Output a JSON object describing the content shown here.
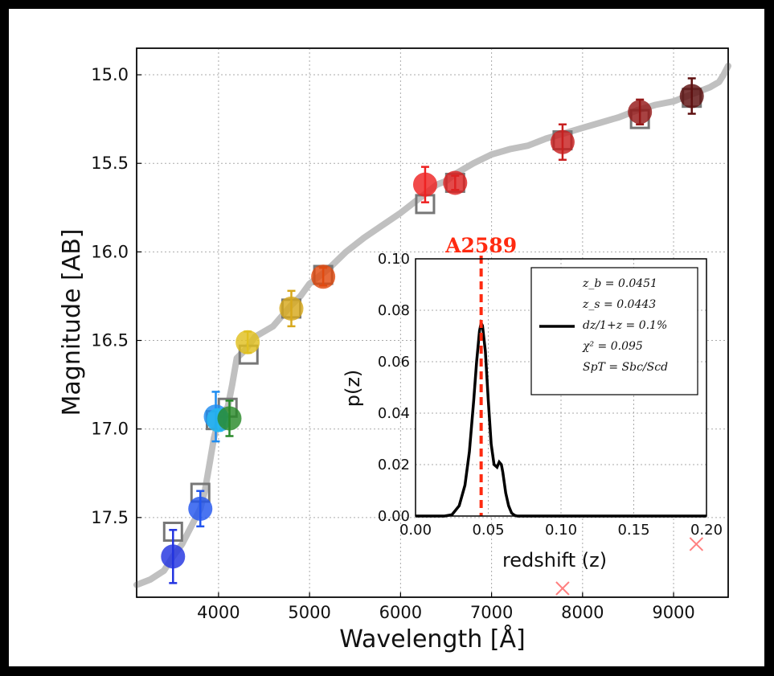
{
  "chart_data": [
    {
      "type": "scatter",
      "xlabel": "Wavelength [Å]",
      "ylabel": "Magnitude [AB]",
      "xlim": [
        3100,
        9600
      ],
      "ylim": [
        17.95,
        14.85
      ],
      "y_inverted": true,
      "grid": true,
      "xticks": [
        4000,
        5000,
        6000,
        7000,
        8000,
        9000
      ],
      "yticks": [
        15.0,
        15.5,
        16.0,
        16.5,
        17.0,
        17.5
      ],
      "template_sed": {
        "color": "#c0c0c0",
        "x": [
          3100,
          3250,
          3400,
          3500,
          3600,
          3700,
          3800,
          3850,
          3900,
          3950,
          4000,
          4050,
          4100,
          4150,
          4200,
          4300,
          4400,
          4600,
          4800,
          4900,
          5000,
          5100,
          5200,
          5300,
          5400,
          5600,
          5800,
          6000,
          6200,
          6300,
          6400,
          6500,
          6600,
          6800,
          7000,
          7200,
          7400,
          7600,
          7800,
          8000,
          8200,
          8400,
          8600,
          8800,
          9000,
          9200,
          9400,
          9500,
          9550,
          9600
        ],
        "y": [
          17.88,
          17.85,
          17.8,
          17.72,
          17.65,
          17.55,
          17.45,
          17.35,
          17.2,
          17.05,
          16.95,
          16.9,
          16.88,
          16.75,
          16.6,
          16.55,
          16.48,
          16.42,
          16.3,
          16.25,
          16.18,
          16.14,
          16.1,
          16.05,
          16.0,
          15.92,
          15.85,
          15.78,
          15.7,
          15.66,
          15.62,
          15.6,
          15.56,
          15.5,
          15.45,
          15.42,
          15.4,
          15.36,
          15.33,
          15.3,
          15.27,
          15.24,
          15.2,
          15.17,
          15.15,
          15.11,
          15.07,
          15.04,
          15.0,
          14.95
        ]
      },
      "observed": [
        {
          "x": 3500,
          "y": 17.72,
          "err": 0.15,
          "color": "#2233e0"
        },
        {
          "x": 3800,
          "y": 17.45,
          "err": 0.1,
          "color": "#2255ee"
        },
        {
          "x": 3970,
          "y": 16.93,
          "err": 0.14,
          "color": "#1e8cf0"
        },
        {
          "x": 4000,
          "y": 16.95,
          "err": 0.06,
          "color": "#25b5ee"
        },
        {
          "x": 4120,
          "y": 16.94,
          "err": 0.1,
          "color": "#2a8a2a"
        },
        {
          "x": 4320,
          "y": 16.51,
          "err": 0.06,
          "color": "#e0c020"
        },
        {
          "x": 4800,
          "y": 16.32,
          "err": 0.1,
          "color": "#d7a81c"
        },
        {
          "x": 5150,
          "y": 16.14,
          "err": 0.05,
          "color": "#e04a10"
        },
        {
          "x": 6270,
          "y": 15.62,
          "err": 0.1,
          "color": "#ee2222"
        },
        {
          "x": 6600,
          "y": 15.61,
          "err": 0.04,
          "color": "#dd2222"
        },
        {
          "x": 7780,
          "y": 15.38,
          "err": 0.1,
          "color": "#c82020"
        },
        {
          "x": 8630,
          "y": 15.21,
          "err": 0.07,
          "color": "#951818"
        },
        {
          "x": 9200,
          "y": 15.12,
          "err": 0.1,
          "color": "#5e1010"
        }
      ],
      "model": [
        {
          "x": 3500,
          "y": 17.58
        },
        {
          "x": 3800,
          "y": 17.36
        },
        {
          "x": 3970,
          "y": 16.95
        },
        {
          "x": 4100,
          "y": 16.88
        },
        {
          "x": 4330,
          "y": 16.58
        },
        {
          "x": 4800,
          "y": 16.32
        },
        {
          "x": 5150,
          "y": 16.13
        },
        {
          "x": 6270,
          "y": 15.73
        },
        {
          "x": 6600,
          "y": 15.61
        },
        {
          "x": 7780,
          "y": 15.37
        },
        {
          "x": 8630,
          "y": 15.25
        },
        {
          "x": 9200,
          "y": 15.13
        }
      ],
      "upper_limits": [
        {
          "x": 7780,
          "y": 17.9,
          "color": "#ff8080"
        },
        {
          "x": 9250,
          "y": 17.65,
          "color": "#ff8080"
        }
      ]
    },
    {
      "type": "line",
      "xlabel": "redshift (z)",
      "ylabel": "p(z)",
      "xlim": [
        0.0,
        0.2
      ],
      "ylim": [
        0.0,
        0.1
      ],
      "xticks": [
        "0.00",
        "0.05",
        "0.10",
        "0.15",
        "0.20"
      ],
      "yticks": [
        "0.00",
        "0.02",
        "0.04",
        "0.06",
        "0.08",
        "0.10"
      ],
      "grid": true,
      "pdf": {
        "color": "#000000",
        "x": [
          0.0,
          0.02,
          0.025,
          0.03,
          0.034,
          0.037,
          0.04,
          0.042,
          0.044,
          0.0451,
          0.046,
          0.048,
          0.05,
          0.052,
          0.054,
          0.056,
          0.0575,
          0.059,
          0.06,
          0.062,
          0.064,
          0.066,
          0.068,
          0.07,
          0.2
        ],
        "y": [
          0.0,
          0.0,
          0.0005,
          0.004,
          0.012,
          0.025,
          0.045,
          0.06,
          0.072,
          0.075,
          0.074,
          0.064,
          0.045,
          0.028,
          0.02,
          0.019,
          0.021,
          0.02,
          0.017,
          0.009,
          0.004,
          0.0012,
          0.0003,
          0.0,
          0.0
        ]
      },
      "reference_line": {
        "x": 0.0451,
        "label": "A2589",
        "color": "#ff2a10"
      },
      "legend": [
        "z_b = 0.0451",
        "z_s = 0.0443",
        "dz/1+z = 0.1%",
        "χ² = 0.095",
        "SpT = Sbc/Scd"
      ]
    }
  ]
}
